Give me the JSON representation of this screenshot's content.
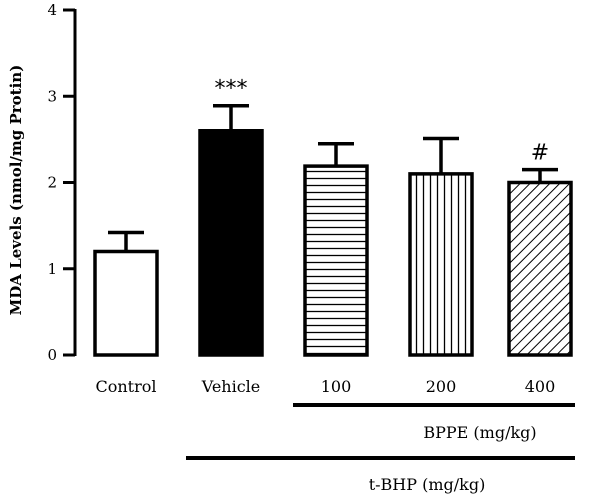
{
  "chart_data": {
    "type": "bar",
    "title": "",
    "xlabel": "",
    "ylabel": "MDA Levels (nmol/mg Protin)",
    "ylim": [
      0,
      4
    ],
    "yticks": [
      0,
      1,
      2,
      3,
      4
    ],
    "grid": false,
    "categories": [
      "Control",
      "Vehicle",
      "100",
      "200",
      "400"
    ],
    "values": [
      1.2,
      2.6,
      2.19,
      2.1,
      2.0
    ],
    "errors": [
      0.22,
      0.29,
      0.26,
      0.41,
      0.15
    ],
    "fills": [
      "white",
      "black",
      "horizontal-stripes",
      "vertical-stripes",
      "diagonal-stripes"
    ],
    "annotations": [
      "",
      "***",
      "",
      "",
      "#"
    ],
    "groups": [
      {
        "label": "BPPE (mg/kg)",
        "from": 2,
        "to": 4
      },
      {
        "label": "t-BHP (mg/kg)",
        "from": 1,
        "to": 4
      }
    ]
  }
}
